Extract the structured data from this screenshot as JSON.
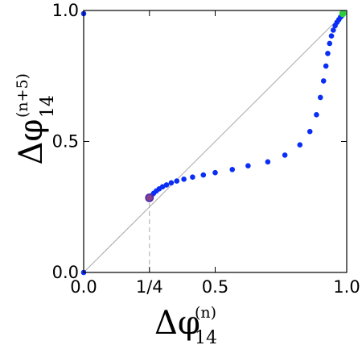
{
  "chart_data": {
    "type": "scatter",
    "title": "",
    "xlabel": {
      "symbol": "Δφ",
      "subscript": "14",
      "superscript": "(n)"
    },
    "ylabel": {
      "symbol": "Δφ",
      "subscript": "14",
      "superscript": "(n+5)"
    },
    "xlim": [
      0,
      1
    ],
    "ylim": [
      0,
      1
    ],
    "x_ticks": [
      {
        "value": 0.0,
        "label": "0.0"
      },
      {
        "value": 0.25,
        "label": "1/4"
      },
      {
        "value": 0.5,
        "label": "0.5"
      },
      {
        "value": 1.0,
        "label": "1.0"
      }
    ],
    "y_ticks": [
      {
        "value": 0.0,
        "label": "0.0"
      },
      {
        "value": 0.5,
        "label": "0.5"
      },
      {
        "value": 1.0,
        "label": "1.0"
      }
    ],
    "diagonal": {
      "from": [
        0,
        0
      ],
      "to": [
        1,
        1
      ],
      "color": "#a8a8a8"
    },
    "guide_line": {
      "x": 0.25,
      "y_from": 0,
      "y_to": 0.285,
      "color": "#a8a8a8"
    },
    "colors": {
      "points": "#0a2ef5",
      "stable_point": "#2ecc40",
      "unstable_point_fill": "#8a3e8e",
      "unstable_point_edge": "#4a2eaa"
    },
    "series": [
      {
        "values": [
          {
            "x": 0.0,
            "y": 0.0
          },
          {
            "x": 0.0,
            "y": 0.988
          },
          {
            "x": 0.258,
            "y": 0.293
          },
          {
            "x": 0.266,
            "y": 0.302
          },
          {
            "x": 0.276,
            "y": 0.311
          },
          {
            "x": 0.287,
            "y": 0.319
          },
          {
            "x": 0.3,
            "y": 0.327
          },
          {
            "x": 0.315,
            "y": 0.334
          },
          {
            "x": 0.333,
            "y": 0.342
          },
          {
            "x": 0.354,
            "y": 0.349
          },
          {
            "x": 0.381,
            "y": 0.356
          },
          {
            "x": 0.414,
            "y": 0.364
          },
          {
            "x": 0.455,
            "y": 0.372
          },
          {
            "x": 0.5,
            "y": 0.381
          },
          {
            "x": 0.565,
            "y": 0.393
          },
          {
            "x": 0.625,
            "y": 0.407
          },
          {
            "x": 0.7,
            "y": 0.422
          },
          {
            "x": 0.765,
            "y": 0.448
          },
          {
            "x": 0.822,
            "y": 0.487
          },
          {
            "x": 0.86,
            "y": 0.538
          },
          {
            "x": 0.885,
            "y": 0.602
          },
          {
            "x": 0.9,
            "y": 0.668
          },
          {
            "x": 0.912,
            "y": 0.731
          },
          {
            "x": 0.921,
            "y": 0.788
          },
          {
            "x": 0.928,
            "y": 0.836
          },
          {
            "x": 0.935,
            "y": 0.874
          },
          {
            "x": 0.942,
            "y": 0.903
          },
          {
            "x": 0.949,
            "y": 0.925
          },
          {
            "x": 0.956,
            "y": 0.942
          },
          {
            "x": 0.963,
            "y": 0.955
          },
          {
            "x": 0.97,
            "y": 0.965
          },
          {
            "x": 0.976,
            "y": 0.974
          },
          {
            "x": 0.981,
            "y": 0.98
          }
        ]
      }
    ],
    "special_points": [
      {
        "kind": "unstable",
        "x": 0.25,
        "y": 0.285
      },
      {
        "kind": "stable",
        "x": 0.985,
        "y": 0.988
      }
    ],
    "grid": false,
    "legend": "none"
  }
}
